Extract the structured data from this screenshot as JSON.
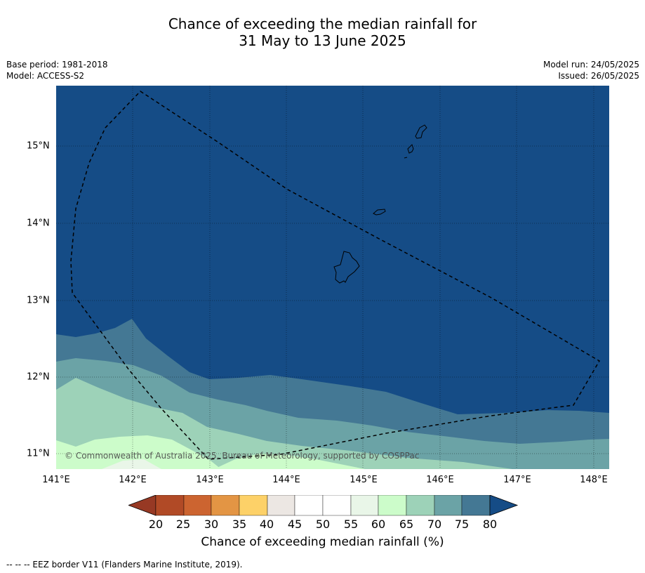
{
  "title_line1": "Chance of exceeding the median rainfall for",
  "title_line2": "31 May to 13 June 2025",
  "base_period": "Base period: 1981-2018",
  "model": "Model: ACCESS-S2",
  "model_run": "Model run: 24/05/2025",
  "issued": "Issued: 26/05/2025",
  "copyright": "© Commonwealth of Australia 2025, Bureau of Meteorology, supported by COSPPac",
  "lon_ticks": [
    "141°E",
    "142°E",
    "143°E",
    "144°E",
    "145°E",
    "146°E",
    "147°E",
    "148°E"
  ],
  "lat_ticks": [
    "15°N",
    "14°N",
    "13°N",
    "12°N",
    "11°N"
  ],
  "colorbar": {
    "ticks": [
      "20",
      "25",
      "30",
      "35",
      "40",
      "45",
      "50",
      "55",
      "60",
      "65",
      "70",
      "75",
      "80"
    ],
    "label": "Chance of exceeding median rainfall (%)",
    "colors": {
      "under20": "#973924",
      "b20_25": "#b14a26",
      "b25_30": "#cc6430",
      "b30_35": "#e39544",
      "b35_40": "#fdd168",
      "b40_45": "#ece7e3",
      "b45_50": "#ffffff",
      "b50_55": "#ffffff",
      "b55_60": "#e9f6e8",
      "b60_65": "#ccfcca",
      "b65_70": "#9dd2b8",
      "b70_75": "#6ba3a6",
      "b75_80": "#447894",
      "over80": "#154c86"
    }
  },
  "footnote": "--  --  -- EEZ border V11 (Flanders Marine Institute, 2019)."
}
